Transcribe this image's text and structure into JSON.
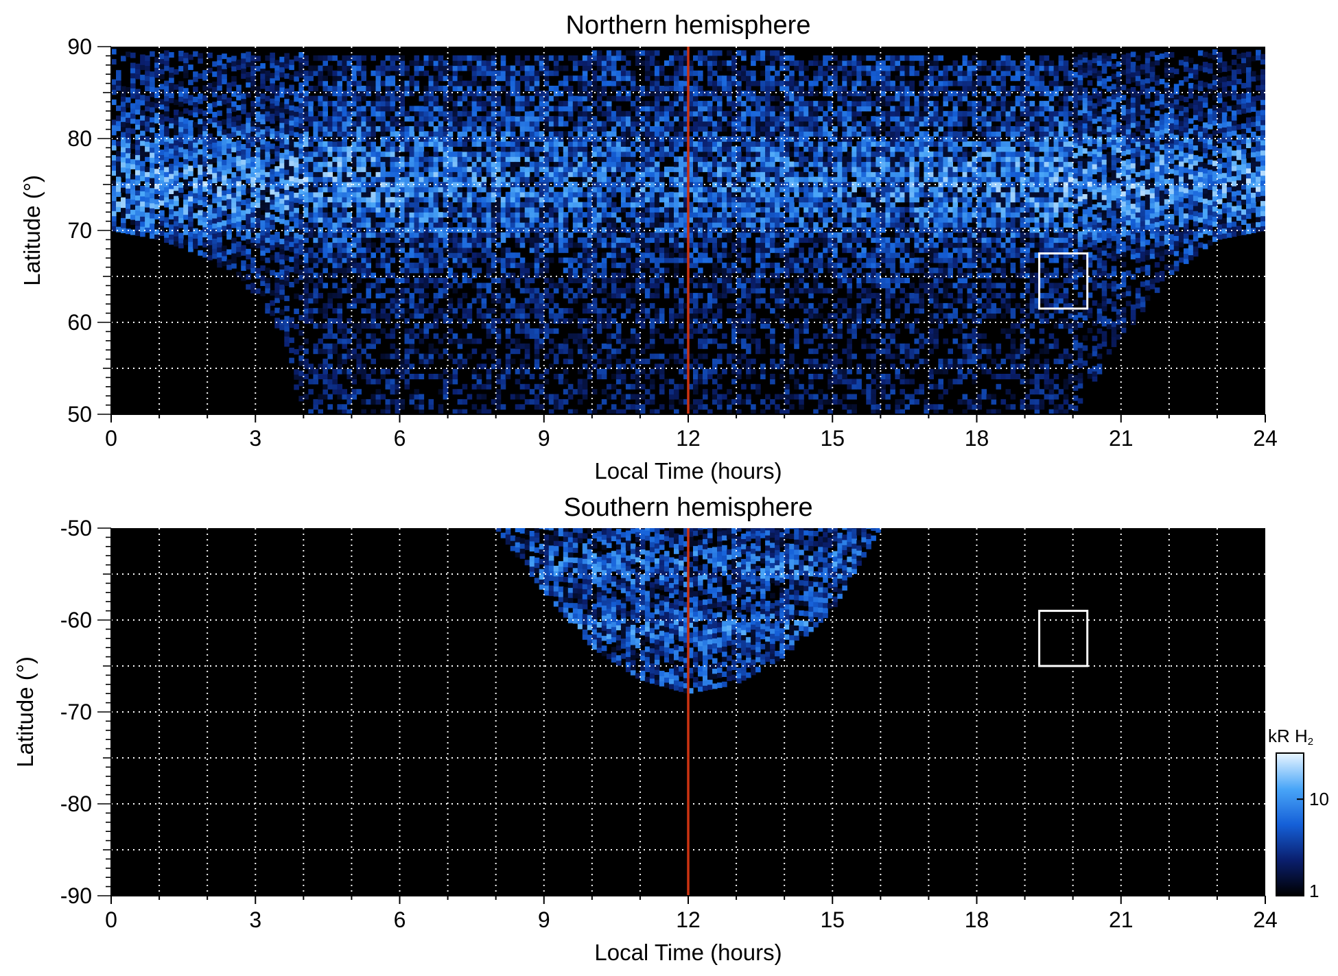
{
  "chart_data": [
    {
      "type": "heatmap",
      "title": "Northern hemisphere",
      "xlabel": "Local Time (hours)",
      "ylabel": "Latitude (°)",
      "xlim": [
        0,
        24
      ],
      "ylim": [
        50,
        90
      ],
      "xticks": [
        0,
        3,
        6,
        9,
        12,
        15,
        18,
        21,
        24
      ],
      "yticks": [
        50,
        60,
        70,
        80,
        90
      ],
      "grid": true,
      "grid_x_step": 1,
      "grid_y_step": 5,
      "noon_line": {
        "x": 12,
        "color": "#cc3311"
      },
      "box": {
        "x": [
          19.3,
          20.3
        ],
        "y": [
          61.5,
          67.5
        ],
        "color": "#ffffff"
      },
      "coverage": [
        {
          "lt": 0,
          "lat": 70
        },
        {
          "lt": 1,
          "lat": 69
        },
        {
          "lt": 2,
          "lat": 67
        },
        {
          "lt": 3,
          "lat": 63
        },
        {
          "lt": 3.5,
          "lat": 59
        },
        {
          "lt": 4,
          "lat": 50
        },
        {
          "lt": 20,
          "lat": 50
        },
        {
          "lt": 21,
          "lat": 58
        },
        {
          "lt": 22,
          "lat": 65
        },
        {
          "lt": 23,
          "lat": 69
        },
        {
          "lt": 24,
          "lat": 70
        }
      ],
      "bright_band": {
        "lat_center": 75,
        "lat_width": 7
      }
    },
    {
      "type": "heatmap",
      "title": "Southern hemisphere",
      "xlabel": "Local Time (hours)",
      "ylabel": "Latitude (°)",
      "xlim": [
        0,
        24
      ],
      "ylim": [
        -90,
        -50
      ],
      "xticks": [
        0,
        3,
        6,
        9,
        12,
        15,
        18,
        21,
        24
      ],
      "yticks": [
        -50,
        -60,
        -70,
        -80,
        -90
      ],
      "grid": true,
      "grid_x_step": 1,
      "grid_y_step": 5,
      "noon_line": {
        "x": 12,
        "color": "#cc3311"
      },
      "box": {
        "x": [
          19.3,
          20.3
        ],
        "y": [
          -65,
          -59
        ],
        "color": "#ffffff"
      },
      "coverage": [
        {
          "lt": 8,
          "lat": -50
        },
        {
          "lt": 9,
          "lat": -57
        },
        {
          "lt": 10,
          "lat": -63
        },
        {
          "lt": 11,
          "lat": -66.5
        },
        {
          "lt": 12,
          "lat": -68
        },
        {
          "lt": 13,
          "lat": -67
        },
        {
          "lt": 14,
          "lat": -64
        },
        {
          "lt": 15,
          "lat": -59
        },
        {
          "lt": 16,
          "lat": -50
        }
      ]
    }
  ],
  "colorbar": {
    "title": "kR H",
    "title_sub": "2",
    "scale": "log",
    "range": [
      1,
      30
    ],
    "ticks": [
      1,
      10
    ],
    "colors": [
      "#000000",
      "#0a1f6e",
      "#1560d8",
      "#4aa6f8",
      "#eaf6ff"
    ]
  }
}
